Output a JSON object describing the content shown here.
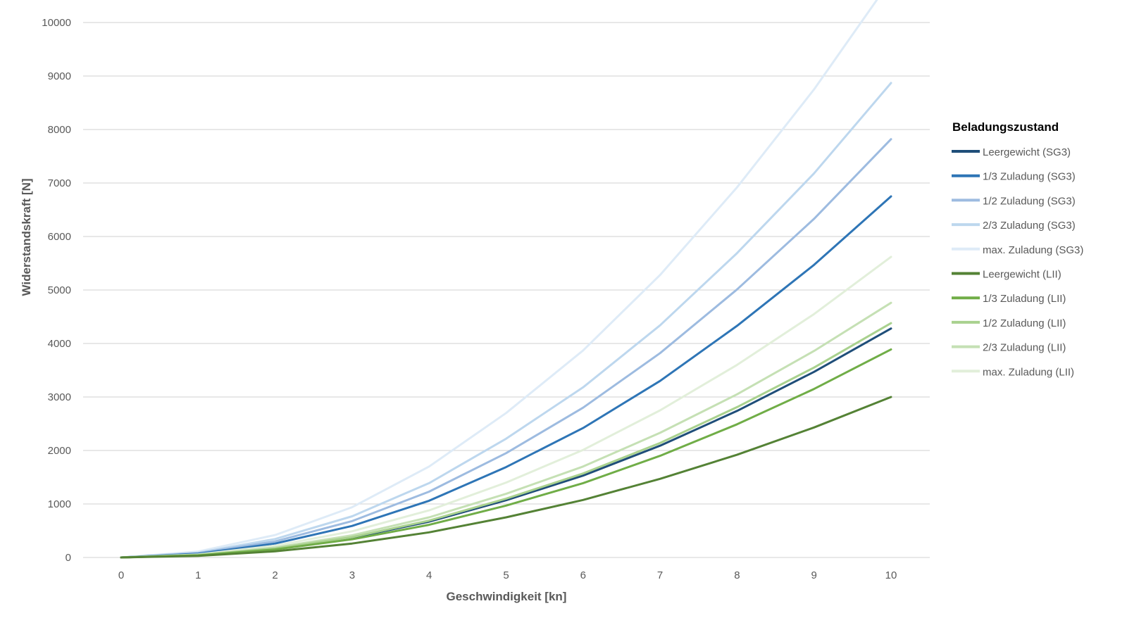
{
  "chart_data": {
    "type": "line",
    "title": "",
    "xlabel": "Geschwindigkeit [kn]",
    "ylabel": "Widerstandskraft [N]",
    "xlim": [
      0,
      10
    ],
    "ylim": [
      0,
      10000
    ],
    "grid": true,
    "x": [
      0,
      1,
      2,
      3,
      4,
      5,
      6,
      7,
      8,
      9,
      10
    ],
    "x_ticks": [
      "0",
      "1",
      "2",
      "3",
      "4",
      "5",
      "6",
      "7",
      "8",
      "9",
      "10"
    ],
    "y_ticks": [
      "0",
      "1000",
      "2000",
      "3000",
      "4000",
      "5000",
      "6000",
      "7000",
      "8000",
      "9000",
      "10000"
    ],
    "legend_title": "Beladungszustand",
    "legend_position": "right",
    "series": [
      {
        "name": "Leergewicht (SG3)",
        "color": "#1f4e79",
        "values": [
          0,
          45,
          170,
          370,
          670,
          1070,
          1530,
          2090,
          2740,
          3470,
          4280
        ]
      },
      {
        "name": "1/3 Zuladung (SG3)",
        "color": "#2e75b6",
        "values": [
          0,
          70,
          260,
          590,
          1060,
          1690,
          2420,
          3300,
          4330,
          5470,
          6750
        ]
      },
      {
        "name": "1/2 Zuladung (SG3)",
        "color": "#9dbbe0",
        "values": [
          0,
          80,
          300,
          680,
          1230,
          1950,
          2800,
          3820,
          5010,
          6330,
          7820
        ]
      },
      {
        "name": "2/3 Zuladung (SG3)",
        "color": "#bdd7ee",
        "values": [
          0,
          90,
          345,
          770,
          1390,
          2220,
          3180,
          4340,
          5690,
          7180,
          8870
        ]
      },
      {
        "name": "max. Zuladung (SG3)",
        "color": "#deebf7",
        "values": [
          0,
          110,
          420,
          940,
          1700,
          2700,
          3870,
          5280,
          6920,
          8750,
          10800
        ]
      },
      {
        "name": "Leergewicht (LII)",
        "color": "#548235",
        "values": [
          0,
          30,
          115,
          260,
          470,
          750,
          1075,
          1470,
          1920,
          2430,
          3000
        ]
      },
      {
        "name": "1/3 Zuladung (LII)",
        "color": "#70ad47",
        "values": [
          0,
          40,
          150,
          340,
          610,
          970,
          1390,
          1900,
          2490,
          3150,
          3890
        ]
      },
      {
        "name": "1/2 Zuladung (LII)",
        "color": "#a9d18e",
        "values": [
          0,
          45,
          170,
          380,
          690,
          1100,
          1570,
          2140,
          2810,
          3550,
          4380
        ]
      },
      {
        "name": "2/3 Zuladung (LII)",
        "color": "#c5e0b4",
        "values": [
          0,
          50,
          185,
          415,
          750,
          1190,
          1700,
          2330,
          3050,
          3860,
          4760
        ]
      },
      {
        "name": "max. Zuladung (LII)",
        "color": "#e2efda",
        "values": [
          0,
          55,
          220,
          490,
          880,
          1400,
          2010,
          2750,
          3600,
          4550,
          5620
        ]
      }
    ]
  }
}
